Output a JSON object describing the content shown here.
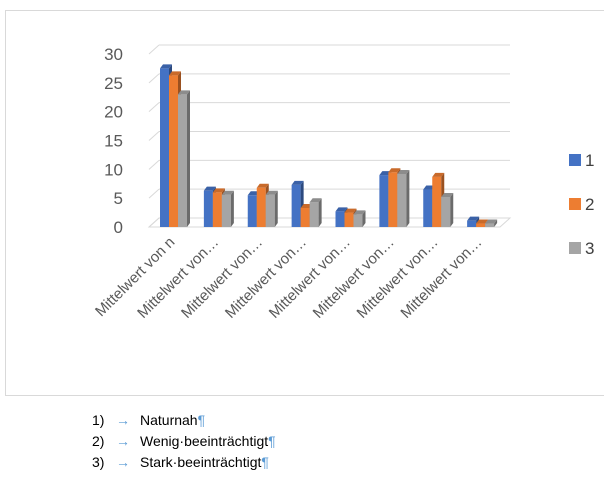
{
  "chart_data": {
    "type": "bar",
    "style": "3d-clustered",
    "categories": [
      "Mittelwert von n",
      "Mittelwert von…",
      "Mittelwert von…",
      "Mittelwert von…",
      "Mittelwert von…",
      "Mittelwert von…",
      "Mittelwert von…",
      "Mittelwert von…"
    ],
    "series": [
      {
        "name": "1",
        "color": "#4472c4",
        "values": [
          27.5,
          6.3,
          5.5,
          7.3,
          2.7,
          9.0,
          6.5,
          1.1
        ]
      },
      {
        "name": "2",
        "color": "#ed7d31",
        "values": [
          26.3,
          6.0,
          6.8,
          3.3,
          2.5,
          9.5,
          8.7,
          0.6
        ]
      },
      {
        "name": "3",
        "color": "#a5a5a5",
        "values": [
          23.0,
          5.6,
          5.6,
          4.3,
          2.2,
          9.2,
          5.2,
          0.6
        ]
      }
    ],
    "yticks": [
      "0",
      "5",
      "10",
      "15",
      "20",
      "25",
      "30"
    ],
    "ylim": [
      0,
      30
    ],
    "grid": true,
    "legend": "right"
  },
  "notes": [
    {
      "num": "1)",
      "arrow": "→",
      "text": "Naturnah",
      "mark": "¶"
    },
    {
      "num": "2)",
      "arrow": "→",
      "text": "Wenig·beeinträchtigt",
      "mark": "¶"
    },
    {
      "num": "3)",
      "arrow": "→",
      "text": "Stark·beeinträchtigt",
      "mark": "¶"
    }
  ]
}
